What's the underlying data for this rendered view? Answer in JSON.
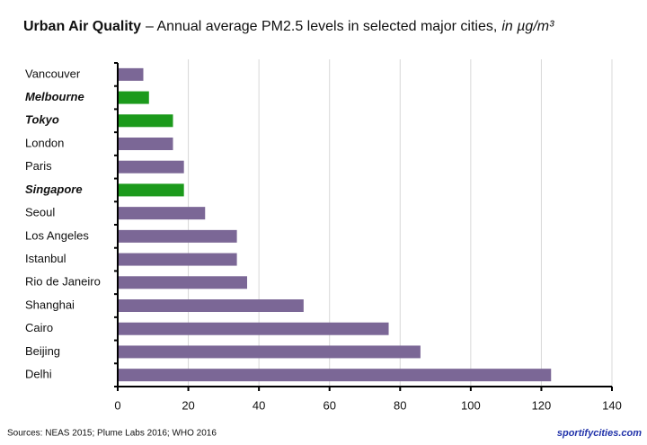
{
  "chart_data": {
    "type": "bar",
    "orientation": "horizontal",
    "title": "Urban Air Quality",
    "subtitle": "– Annual average PM2.5 levels in selected major cities,",
    "unit": "in µg/m³",
    "categories": [
      "Vancouver",
      "Melbourne",
      "Tokyo",
      "London",
      "Paris",
      "Singapore",
      "Seoul",
      "Los Angeles",
      "Istanbul",
      "Rio de Janeiro",
      "Shanghai",
      "Cairo",
      "Beijing",
      "Delhi"
    ],
    "values": [
      7,
      8.6,
      15.4,
      15.4,
      18.5,
      18.5,
      24.5,
      33.5,
      33.5,
      36.4,
      52.4,
      76.5,
      85.5,
      122.5
    ],
    "colors": [
      "#7b6796",
      "#1c9a1c",
      "#1c9a1c",
      "#7b6796",
      "#7b6796",
      "#1c9a1c",
      "#7b6796",
      "#7b6796",
      "#7b6796",
      "#7b6796",
      "#7b6796",
      "#7b6796",
      "#7b6796",
      "#7b6796"
    ],
    "highlight_color": "#1c9a1c",
    "xlim": [
      0,
      140
    ],
    "xticks": [
      0,
      20,
      40,
      60,
      80,
      100,
      120,
      140
    ],
    "grid": true,
    "source": "Sources:  NEAS 2015; Plume Labs 2016; WHO 2016",
    "credit": "sportifycities.com"
  }
}
